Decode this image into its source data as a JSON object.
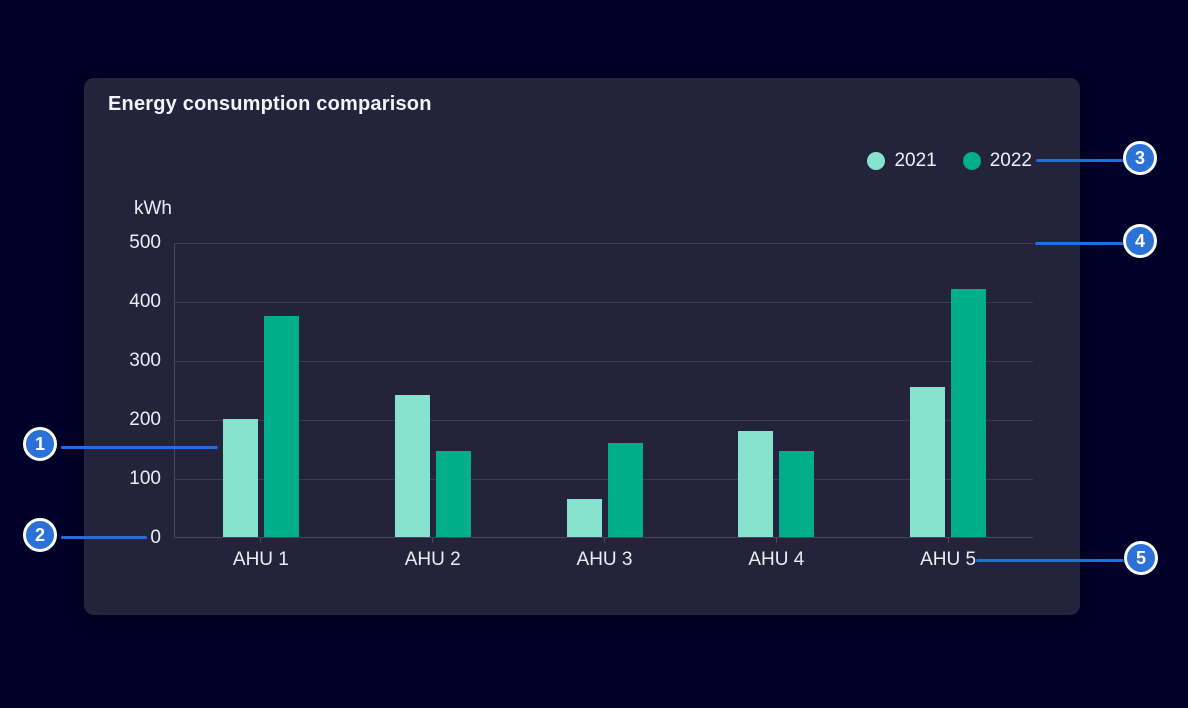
{
  "card": {
    "title": "Energy consumption comparison"
  },
  "chart_data": {
    "type": "bar",
    "title": "Energy consumption comparison",
    "categories": [
      "AHU 1",
      "AHU 2",
      "AHU 3",
      "AHU 4",
      "AHU 5"
    ],
    "series": [
      {
        "name": "2021",
        "color": "#88E3CE",
        "values": [
          200,
          240,
          65,
          180,
          255
        ]
      },
      {
        "name": "2022",
        "color": "#00AE8C",
        "values": [
          375,
          145,
          160,
          145,
          420
        ]
      }
    ],
    "xlabel": "",
    "ylabel": "kWh",
    "ylim": [
      0,
      500
    ],
    "yticks": [
      0,
      100,
      200,
      300,
      400,
      500
    ],
    "grid": true,
    "legend_position": "top-right"
  },
  "callouts": {
    "badges": [
      {
        "number": "1"
      },
      {
        "number": "2"
      },
      {
        "number": "3"
      },
      {
        "number": "4"
      },
      {
        "number": "5"
      }
    ]
  },
  "colors": {
    "page_bg": "#000028",
    "card_bg": "#23233C",
    "gridline": "#3C3C55",
    "text": "#EDEDF4",
    "accent_blue": "#2B71D7",
    "line_blue": "#1E6FE0",
    "series_2021": "#88E3CE",
    "series_2022": "#00AE8C"
  }
}
